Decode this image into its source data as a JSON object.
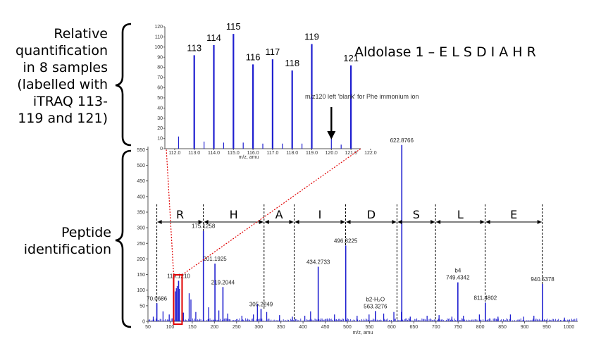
{
  "labels": {
    "quant": "Relative quantification in 8 samples (labelled with iTRAQ 113-119 and 121)",
    "quant_lines": [
      "Relative",
      "quantification",
      "in 8 samples",
      "(labelled with",
      "iTRAQ 113-",
      "119 and 121)"
    ],
    "pepid_lines": [
      "Peptide",
      "identification"
    ],
    "title": "Aldolase 1 – E L S D I A H R",
    "blank_note": "m/z120 left 'blank' for Phe immonium ion"
  },
  "colors": {
    "spectrum": "#1f1fd0",
    "highlight": "#e00000",
    "zoom_line": "#e00000"
  },
  "chart_data": [
    {
      "type": "bar",
      "name": "inset-itraq",
      "xlabel": "m/z, amu",
      "xlim": [
        111.5,
        121.5
      ],
      "ylim": [
        0,
        120
      ],
      "xticks": [
        "112.0",
        "113.0",
        "114.0",
        "115.0",
        "116.0",
        "117.0",
        "118.0",
        "119.0",
        "120.0",
        "121.0",
        "122.0"
      ],
      "yticks": [
        "0",
        "10",
        "20",
        "30",
        "40",
        "50",
        "60",
        "70",
        "80",
        "90",
        "100",
        "110",
        "120"
      ],
      "peaks": [
        {
          "x": 113.0,
          "y": 92,
          "label": "113"
        },
        {
          "x": 114.0,
          "y": 102,
          "label": "114"
        },
        {
          "x": 115.0,
          "y": 113,
          "label": "115"
        },
        {
          "x": 116.0,
          "y": 83,
          "label": "116"
        },
        {
          "x": 117.0,
          "y": 88,
          "label": "117"
        },
        {
          "x": 118.0,
          "y": 77,
          "label": "118"
        },
        {
          "x": 119.0,
          "y": 103,
          "label": "119"
        },
        {
          "x": 121.0,
          "y": 82,
          "label": "121"
        }
      ],
      "minor_peaks": [
        {
          "x": 112.2,
          "y": 12
        },
        {
          "x": 113.5,
          "y": 7
        },
        {
          "x": 114.5,
          "y": 6
        },
        {
          "x": 115.5,
          "y": 6
        },
        {
          "x": 116.5,
          "y": 5
        },
        {
          "x": 117.5,
          "y": 5
        },
        {
          "x": 118.5,
          "y": 5
        },
        {
          "x": 120.0,
          "y": 10
        },
        {
          "x": 120.5,
          "y": 4
        }
      ]
    },
    {
      "type": "bar",
      "name": "msms-spectrum",
      "xlabel": "m/z, amu",
      "xlim": [
        50,
        1020
      ],
      "ylim": [
        0,
        560
      ],
      "xticks": [
        "50",
        "100",
        "150",
        "200",
        "250",
        "300",
        "350",
        "400",
        "450",
        "500",
        "550",
        "600",
        "650",
        "700",
        "750",
        "800",
        "850",
        "900",
        "950",
        "1000"
      ],
      "yticks": [
        "0",
        "50",
        "100",
        "150",
        "200",
        "250",
        "300",
        "350",
        "400",
        "450",
        "500",
        "550"
      ],
      "labeled_peaks": [
        {
          "x": 70.0686,
          "y": 58,
          "label": "70.0686"
        },
        {
          "x": 119.121,
          "y": 130,
          "label": "119.1210"
        },
        {
          "x": 175.1258,
          "y": 290,
          "label": "175.1258"
        },
        {
          "x": 201.1925,
          "y": 185,
          "label": "201.1925"
        },
        {
          "x": 219.2044,
          "y": 110,
          "label": "219.2044"
        },
        {
          "x": 305.2249,
          "y": 40,
          "label": "305.2249"
        },
        {
          "x": 434.2733,
          "y": 175,
          "label": "434.2733"
        },
        {
          "x": 496.3225,
          "y": 243,
          "label": "496.3225"
        },
        {
          "x": 563.3276,
          "y": 33,
          "label": "563.3276"
        },
        {
          "x": 622.8766,
          "y": 565,
          "label": "622.8766"
        },
        {
          "x": 749.4342,
          "y": 125,
          "label": "749.4342"
        },
        {
          "x": 811.4802,
          "y": 60,
          "label": "811.4802"
        },
        {
          "x": 940.5378,
          "y": 120,
          "label": "940.5378"
        }
      ],
      "minor_peaks": [
        {
          "x": 62,
          "y": 15
        },
        {
          "x": 84,
          "y": 32
        },
        {
          "x": 98,
          "y": 22
        },
        {
          "x": 112,
          "y": 96
        },
        {
          "x": 114,
          "y": 106
        },
        {
          "x": 116,
          "y": 113
        },
        {
          "x": 121,
          "y": 104
        },
        {
          "x": 130,
          "y": 28
        },
        {
          "x": 143,
          "y": 90
        },
        {
          "x": 147,
          "y": 70
        },
        {
          "x": 158,
          "y": 30
        },
        {
          "x": 187,
          "y": 45
        },
        {
          "x": 210,
          "y": 35
        },
        {
          "x": 230,
          "y": 25
        },
        {
          "x": 262,
          "y": 18
        },
        {
          "x": 288,
          "y": 22
        },
        {
          "x": 297,
          "y": 55
        },
        {
          "x": 318,
          "y": 30
        },
        {
          "x": 347,
          "y": 20
        },
        {
          "x": 376,
          "y": 15
        },
        {
          "x": 404,
          "y": 18
        },
        {
          "x": 417,
          "y": 32
        },
        {
          "x": 471,
          "y": 22
        },
        {
          "x": 522,
          "y": 18
        },
        {
          "x": 549,
          "y": 22
        },
        {
          "x": 582,
          "y": 25
        },
        {
          "x": 605,
          "y": 30
        },
        {
          "x": 622,
          "y": 30
        },
        {
          "x": 642,
          "y": 15
        },
        {
          "x": 680,
          "y": 18
        },
        {
          "x": 707,
          "y": 20
        },
        {
          "x": 736,
          "y": 15
        },
        {
          "x": 762,
          "y": 18
        },
        {
          "x": 798,
          "y": 22
        },
        {
          "x": 840,
          "y": 15
        },
        {
          "x": 868,
          "y": 22
        },
        {
          "x": 898,
          "y": 15
        },
        {
          "x": 921,
          "y": 18
        },
        {
          "x": 990,
          "y": 12
        }
      ],
      "ion_labels": [
        {
          "x": 749.4342,
          "text": "b4"
        },
        {
          "x": 563.3276,
          "text": "b2-H₂O"
        }
      ],
      "sequence_boundaries": [
        70,
        175,
        312,
        380,
        496,
        612,
        699,
        811,
        940
      ],
      "sequence": [
        "R",
        "H",
        "A",
        "I",
        "D",
        "S",
        "L",
        "E"
      ]
    }
  ]
}
